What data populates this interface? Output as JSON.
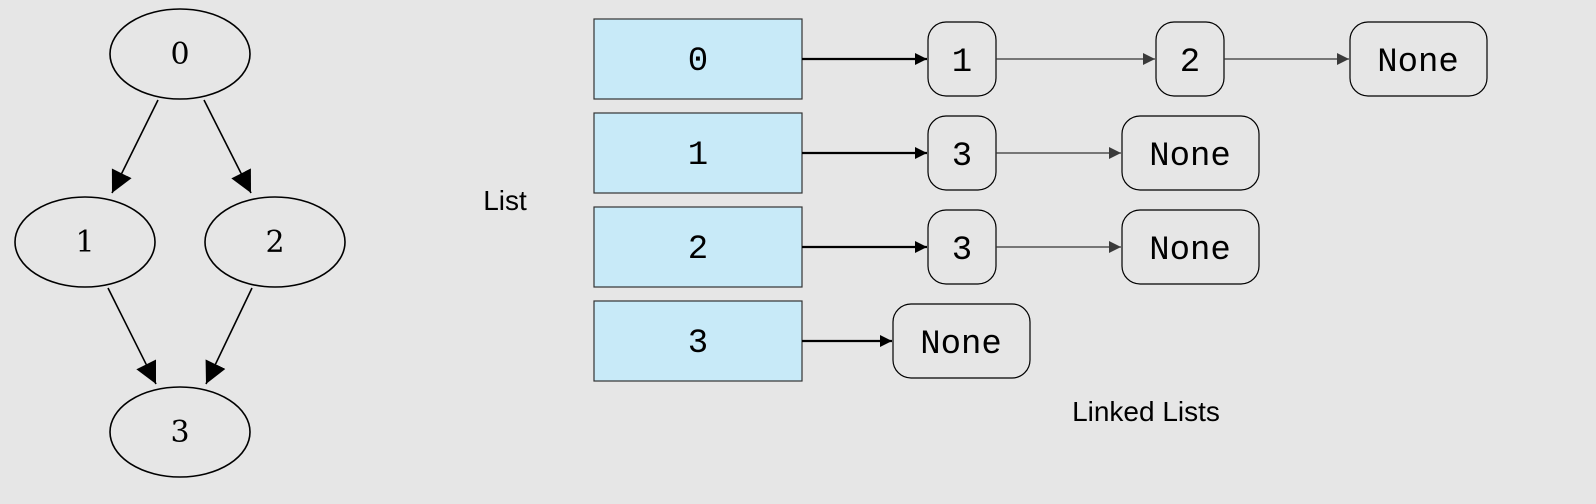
{
  "graph": {
    "nodes": [
      "0",
      "1",
      "2",
      "3"
    ],
    "edges": [
      [
        "0",
        "1"
      ],
      [
        "0",
        "2"
      ],
      [
        "1",
        "3"
      ],
      [
        "2",
        "3"
      ]
    ]
  },
  "list_label": "List",
  "adjacency_list": [
    {
      "index": "0",
      "chain": [
        "1",
        "2",
        "None"
      ]
    },
    {
      "index": "1",
      "chain": [
        "3",
        "None"
      ]
    },
    {
      "index": "2",
      "chain": [
        "3",
        "None"
      ]
    },
    {
      "index": "3",
      "chain": [
        "None"
      ]
    }
  ],
  "linked_lists_label": "Linked Lists",
  "colors": {
    "background": "#e6e6e6",
    "list_cell_fill": "#c8eaf8",
    "stroke": "#000000",
    "arrow_thin": "#333333"
  }
}
